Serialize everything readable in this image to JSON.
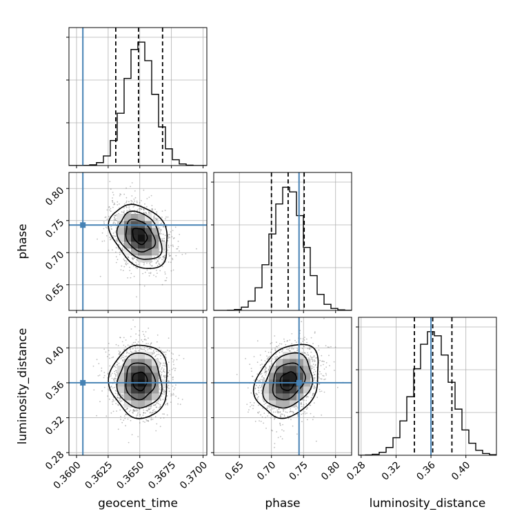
{
  "chart_data": {
    "type": "corner",
    "parameters": [
      {
        "name": "geocent_time",
        "label": "geocent_time",
        "range": [
          0.3594,
          0.3703
        ],
        "ticks": [
          0.36,
          0.3625,
          0.365,
          0.3675,
          0.37
        ],
        "tick_labels": [
          "0.3600",
          "0.3625",
          "0.3650",
          "0.3675",
          "0.3700"
        ],
        "truth": 0.3605,
        "quantiles": [
          0.3631,
          0.3649,
          0.3668
        ],
        "median": 0.365,
        "sigma": 0.00115
      },
      {
        "name": "phase",
        "label": "phase",
        "range": [
          0.61,
          0.825
        ],
        "ticks": [
          0.65,
          0.7,
          0.75,
          0.8
        ],
        "tick_labels": [
          "0.65",
          "0.70",
          "0.75",
          "0.80"
        ],
        "truth": 0.743,
        "quantiles": [
          0.7,
          0.726,
          0.751
        ],
        "median": 0.726,
        "sigma": 0.025
      },
      {
        "name": "luminosity_distance",
        "label": "luminosity_distance",
        "range": [
          0.277,
          0.435
        ],
        "ticks": [
          0.28,
          0.32,
          0.36,
          0.4
        ],
        "tick_labels": [
          "0.28",
          "0.32",
          "0.36",
          "0.40"
        ],
        "truth": 0.36,
        "quantiles": [
          0.341,
          0.362,
          0.384
        ],
        "median": 0.362,
        "sigma": 0.021
      }
    ],
    "correlations": {
      "0-1": -0.3,
      "0-2": 0.0,
      "1-2": 0.25
    },
    "colors": {
      "truth": "#4682b4",
      "hist": "#000000",
      "grid": "#b0b0b0",
      "quantile": "#000000"
    },
    "grid": true,
    "legend": "none"
  }
}
